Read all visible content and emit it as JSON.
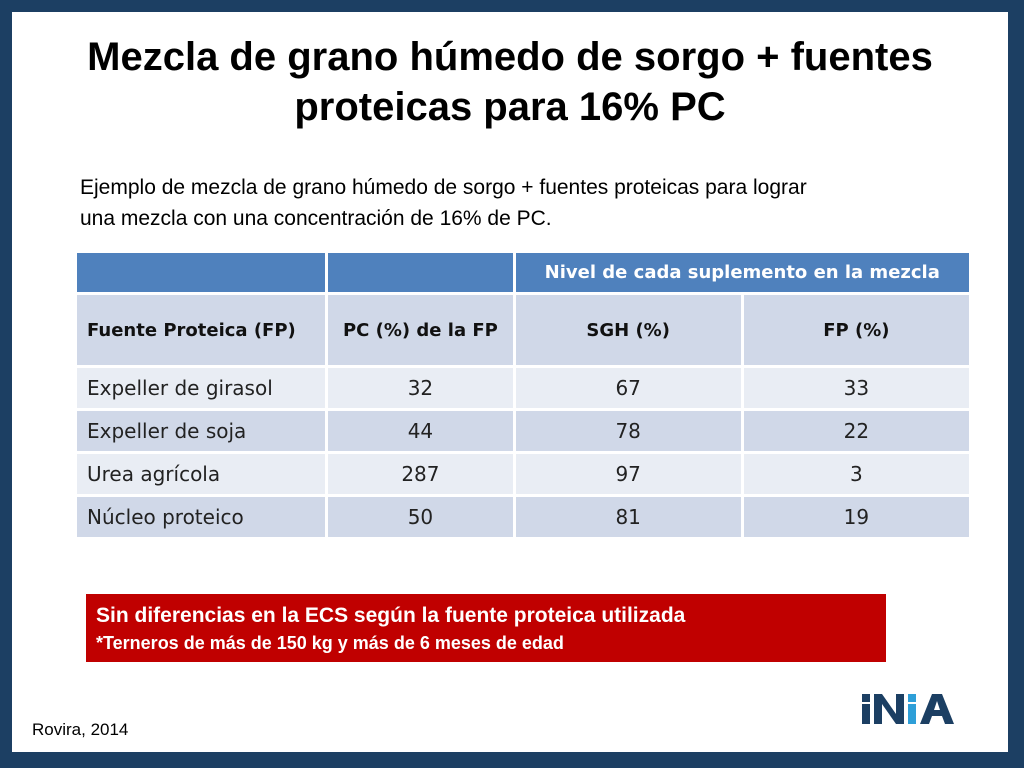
{
  "slide": {
    "title_line1": "Mezcla de grano húmedo de sorgo + fuentes",
    "title_line2": "proteicas para 16% PC",
    "intro_line1": "Ejemplo de mezcla de grano húmedo de sorgo + fuentes proteicas para lograr",
    "intro_line2": "una mezcla con una concentración de 16% de PC.",
    "source": "Rovira, 2014",
    "logo_text": "INIA"
  },
  "table": {
    "group_header": "Nivel de cada suplemento en la mezcla",
    "columns": [
      "Fuente Proteica (FP)",
      "PC (%) de la FP",
      "SGH (%)",
      "FP (%)"
    ],
    "rows": [
      {
        "fuente": "Expeller de girasol",
        "pc": "32",
        "sgh": "67",
        "fp": "33"
      },
      {
        "fuente": "Expeller de soja",
        "pc": "44",
        "sgh": "78",
        "fp": "22"
      },
      {
        "fuente": "Urea agrícola",
        "pc": "287",
        "sgh": "97",
        "fp": "3"
      },
      {
        "fuente": "Núcleo proteico",
        "pc": "50",
        "sgh": "81",
        "fp": "19"
      }
    ]
  },
  "note": {
    "line1": "Sin diferencias en la ECS según la fuente proteica utilizada",
    "line2": "*Terneros de más de 150 kg y más de 6 meses de edad"
  },
  "colors": {
    "frame": "#1c3f63",
    "table_header": "#4f81bd",
    "row_dark": "#d0d8e8",
    "row_light": "#e9edf4",
    "note_bg": "#c00000"
  }
}
